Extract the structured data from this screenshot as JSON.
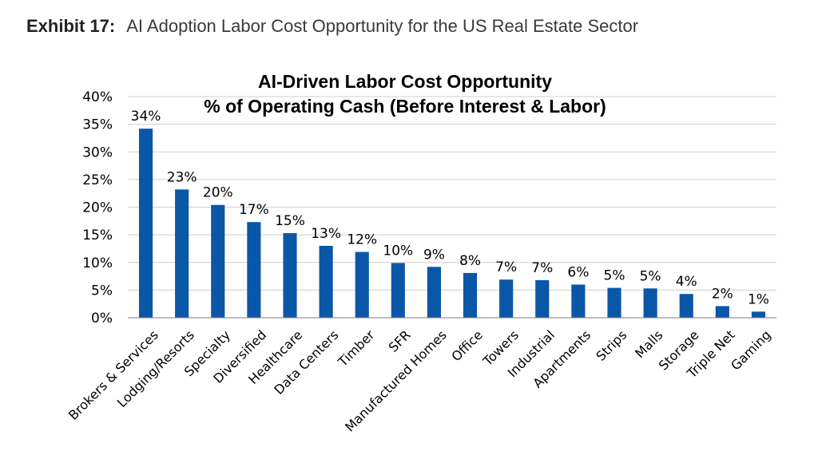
{
  "exhibit": {
    "label": "Exhibit 17:",
    "title": "AI Adoption Labor Cost Opportunity for the US Real Estate Sector"
  },
  "chart_data": {
    "type": "bar",
    "title": "AI-Driven Labor Cost Opportunity",
    "subtitle": "% of Operating Cash (Before Interest & Labor)",
    "categories": [
      "Brokers & Services",
      "Lodging/Resorts",
      "Specialty",
      "Diversified",
      "Healthcare",
      "Data Centers",
      "Timber",
      "SFR",
      "Manufactured Homes",
      "Office",
      "Towers",
      "Industrial",
      "Apartments",
      "Strips",
      "Malls",
      "Storage",
      "Triple Net",
      "Gaming"
    ],
    "values": [
      34.2,
      23.2,
      20.4,
      17.3,
      15.3,
      13.0,
      11.9,
      9.9,
      9.2,
      8.1,
      6.9,
      6.8,
      6.0,
      5.4,
      5.3,
      4.3,
      2.1,
      1.1
    ],
    "data_labels": [
      "34%",
      "23%",
      "20%",
      "17%",
      "15%",
      "13%",
      "12%",
      "10%",
      "9%",
      "8%",
      "7%",
      "7%",
      "6%",
      "5%",
      "5%",
      "4%",
      "2%",
      "1%"
    ],
    "yticks": [
      "0%",
      "5%",
      "10%",
      "15%",
      "20%",
      "25%",
      "30%",
      "35%",
      "40%"
    ],
    "ylim": [
      0,
      40
    ],
    "xlabel": "",
    "ylabel": "",
    "grid": true,
    "bar_color": "#0a57a8"
  }
}
